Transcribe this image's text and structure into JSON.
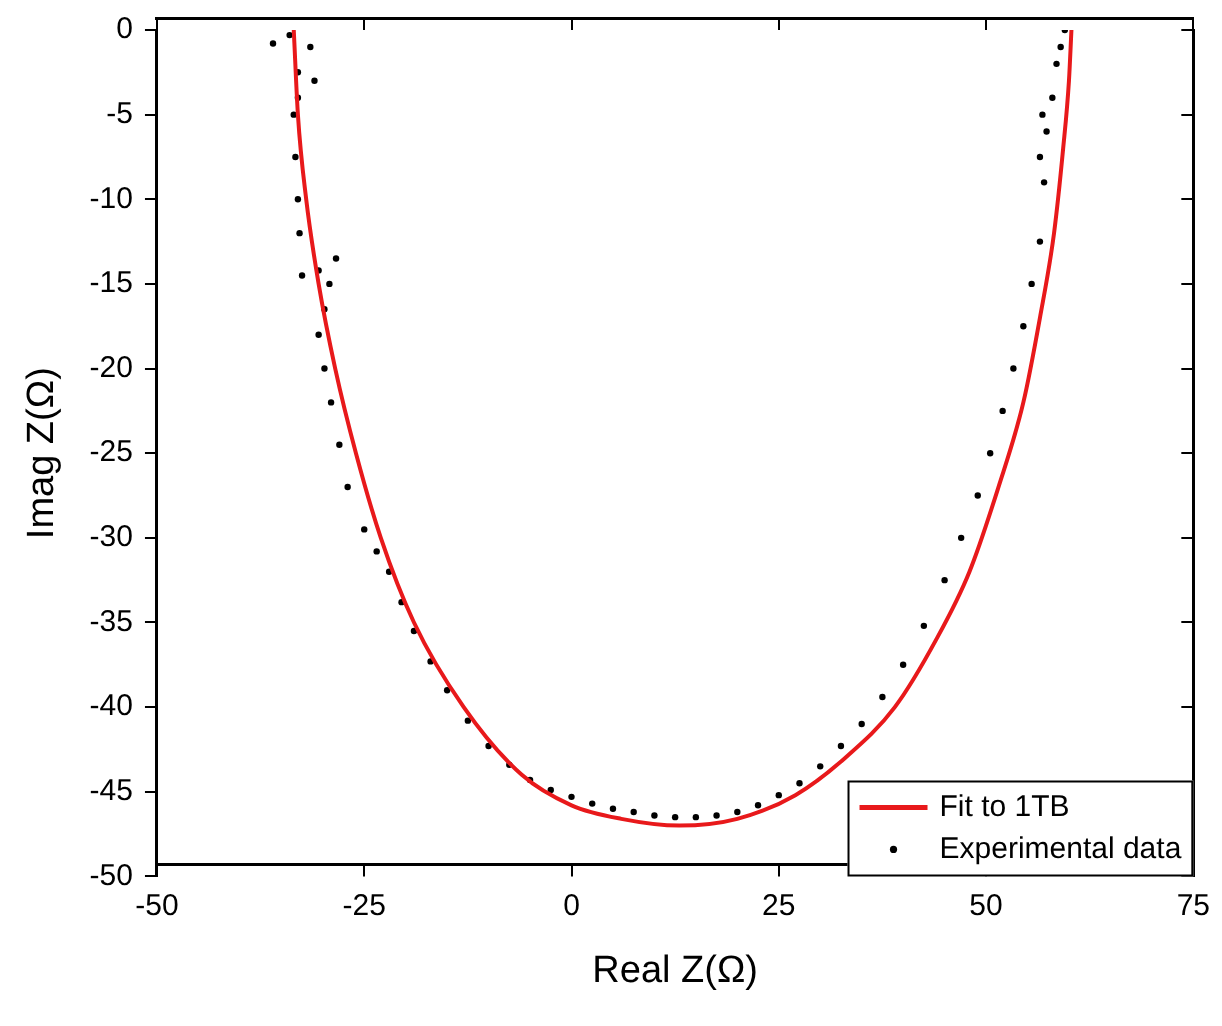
{
  "chart_data": {
    "type": "line",
    "xlabel": "Real Z(Ω)",
    "ylabel": "Imag Z(Ω)",
    "xlim": [
      -50,
      75
    ],
    "xticks": [
      -50,
      -25,
      0,
      25,
      50,
      75
    ],
    "ylim": [
      -50,
      0
    ],
    "yticks": [
      -50,
      -45,
      -40,
      -35,
      -30,
      -25,
      -20,
      -15,
      -10,
      -5,
      0
    ],
    "grid": false,
    "legend": "bottom right",
    "series": [
      {
        "name": "Fit to 1TB",
        "color": "#e8191b",
        "marker": "none",
        "line_style": "solid",
        "x": [
          -33.5,
          -33,
          -32,
          -30.5,
          -28.5,
          -26,
          -23,
          -19,
          -13,
          -6,
          0,
          6,
          13,
          20,
          27,
          33,
          39,
          44,
          48,
          51.5,
          54.5,
          56.5,
          58.2,
          59.3,
          60,
          60.3
        ],
        "values": [
          0,
          -5,
          -10,
          -15,
          -20,
          -25,
          -30,
          -35,
          -40,
          -44,
          -45.8,
          -46.6,
          -47,
          -46.6,
          -45.2,
          -43,
          -40,
          -36,
          -32,
          -27,
          -22,
          -17,
          -12,
          -7,
          -3,
          0
        ]
      },
      {
        "name": "Experimental data",
        "type": "scatter",
        "color": "#000000",
        "marker": "circle",
        "x": [
          -34,
          -36,
          -33,
          -31.5,
          -31,
          -33,
          -33.5,
          -33.3,
          -33,
          -32.8,
          -32.5,
          -30.5,
          -28.4,
          -29.2,
          -29.8,
          -30.5,
          -29.8,
          -29,
          -28,
          -27,
          -25,
          -23.5,
          -22,
          -20.5,
          -19,
          -17,
          -15,
          -12.5,
          -10,
          -7.5,
          -5,
          -2.5,
          0,
          2.5,
          5,
          7.5,
          10,
          12.5,
          15,
          17.5,
          20,
          22.5,
          25,
          27.5,
          30,
          32.5,
          35,
          37.5,
          40,
          42.5,
          45,
          47,
          49,
          50.5,
          52,
          53.3,
          54.5,
          55.5,
          56.5,
          57,
          56.5,
          57.3,
          56.8,
          58,
          58.5,
          59,
          59.5
        ],
        "values": [
          -0.3,
          -0.8,
          -2.5,
          -1,
          -3,
          -4,
          -5,
          -7.5,
          -10,
          -12,
          -14.5,
          -14.2,
          -13.5,
          -15,
          -16.5,
          -18,
          -20,
          -22,
          -24.5,
          -27,
          -29.5,
          -30.8,
          -32,
          -33.8,
          -35.5,
          -37.3,
          -39,
          -40.8,
          -42.3,
          -43.4,
          -44.3,
          -44.9,
          -45.3,
          -45.7,
          -46,
          -46.2,
          -46.4,
          -46.5,
          -46.5,
          -46.4,
          -46.2,
          -45.8,
          -45.2,
          -44.5,
          -43.5,
          -42.3,
          -41,
          -39.4,
          -37.5,
          -35.2,
          -32.5,
          -30,
          -27.5,
          -25,
          -22.5,
          -20,
          -17.5,
          -15,
          -12.5,
          -9,
          -7.5,
          -6,
          -5,
          -4,
          -2,
          -1,
          0
        ]
      }
    ]
  }
}
